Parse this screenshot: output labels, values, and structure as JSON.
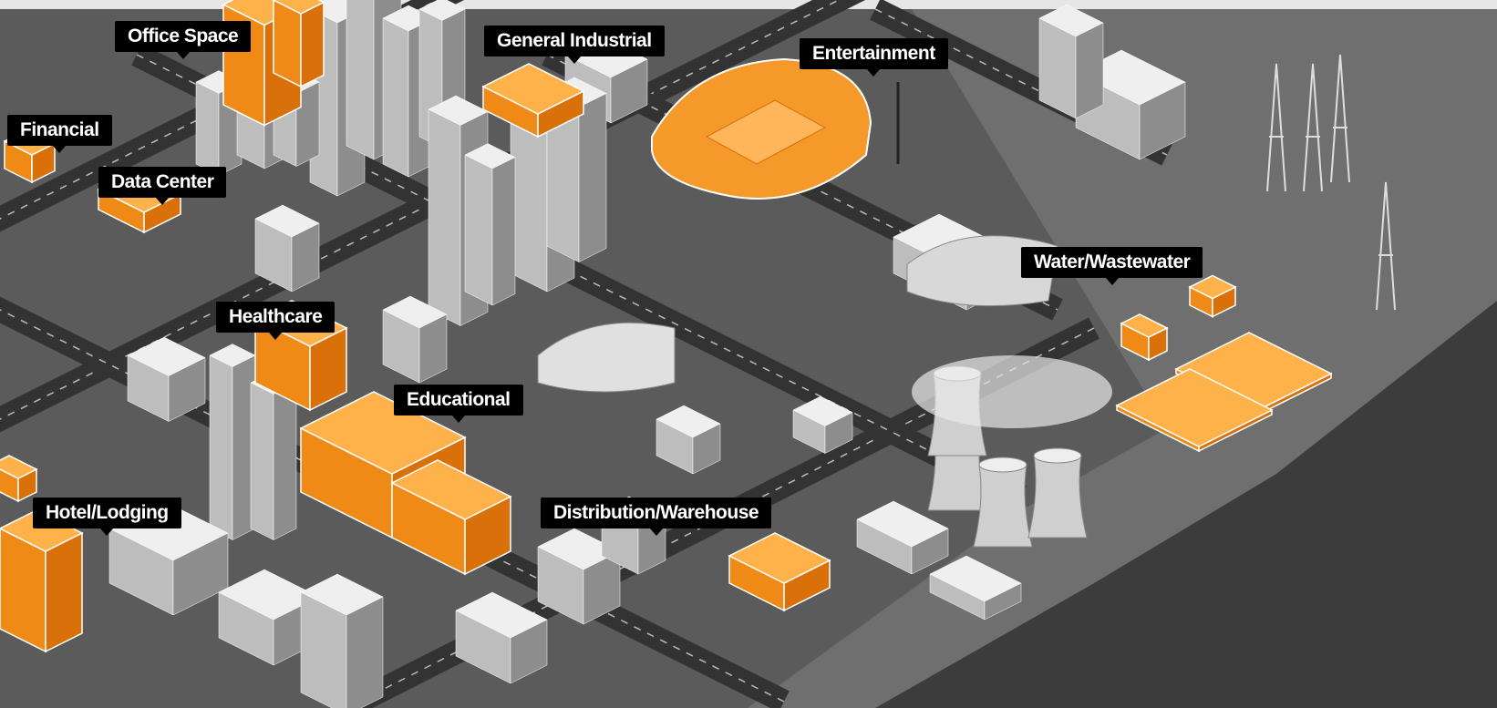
{
  "labels": [
    "Office Space",
    "General Industrial",
    "Entertainment",
    "Financial",
    "Data Center",
    "Water/Wastewater",
    "Healthcare",
    "Educational",
    "Hotel/Lodging",
    "Distribution/Warehouse"
  ]
}
